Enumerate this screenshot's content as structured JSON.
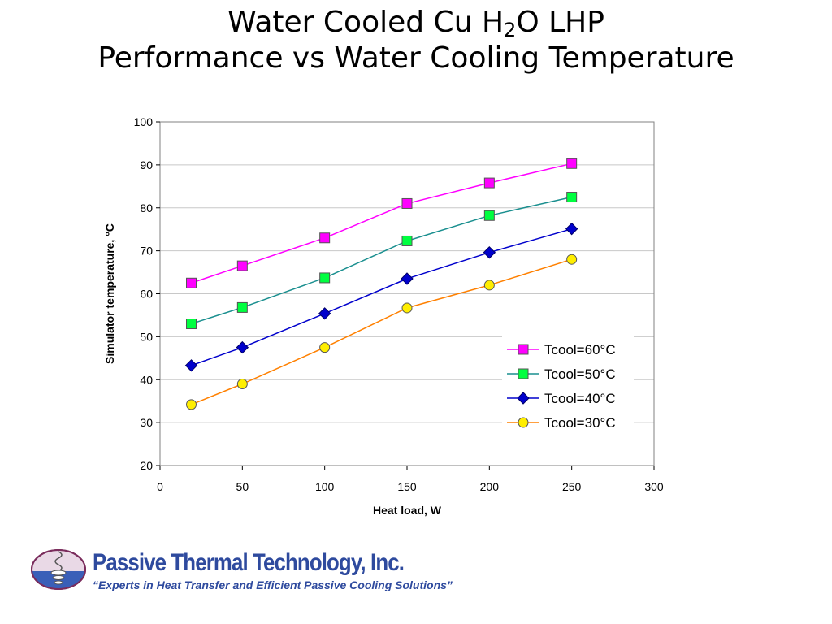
{
  "slide": {
    "title_line1_pre": "Water Cooled Cu H",
    "title_line1_sub": "2",
    "title_line1_post": "O LHP",
    "title_line2": "Performance vs Water Cooling Temperature"
  },
  "chart_data": {
    "type": "line",
    "title": "",
    "xlabel": "Heat load, W",
    "ylabel": "Simulator temperature,  °C",
    "xlim": [
      0,
      300
    ],
    "ylim": [
      20,
      100
    ],
    "xticks": [
      "0",
      "50",
      "100",
      "150",
      "200",
      "250",
      "300"
    ],
    "yticks": [
      "20",
      "30",
      "40",
      "50",
      "60",
      "70",
      "80",
      "90",
      "100"
    ],
    "grid": "horizontal",
    "legend_position": "bottom-right",
    "x": [
      19,
      50,
      100,
      150,
      200,
      250
    ],
    "series": [
      {
        "name": "Tcool=60°C",
        "color": "#ff00ff",
        "line_color": "#ff00ff",
        "marker": "square",
        "values": [
          62.5,
          66.5,
          73.0,
          81.0,
          85.8,
          90.3
        ]
      },
      {
        "name": "Tcool=50°C",
        "color": "#00ff40",
        "line_color": "#1a8f8f",
        "marker": "square",
        "values": [
          53.0,
          56.8,
          63.7,
          72.3,
          78.2,
          82.5
        ]
      },
      {
        "name": "Tcool=40°C",
        "color": "#0000cc",
        "line_color": "#0000cc",
        "marker": "diamond",
        "values": [
          43.3,
          47.5,
          55.4,
          63.5,
          69.6,
          75.1
        ]
      },
      {
        "name": "Tcool=30°C",
        "color": "#ffee00",
        "line_color": "#ff8000",
        "marker": "circle",
        "values": [
          34.2,
          39.0,
          47.5,
          56.7,
          62.0,
          68.0
        ]
      }
    ]
  },
  "footer": {
    "company": "Passive Thermal Technology, Inc.",
    "tagline": "“Experts in Heat Transfer and Efficient Passive Cooling Solutions”",
    "brand_color": "#2e4a9e"
  }
}
